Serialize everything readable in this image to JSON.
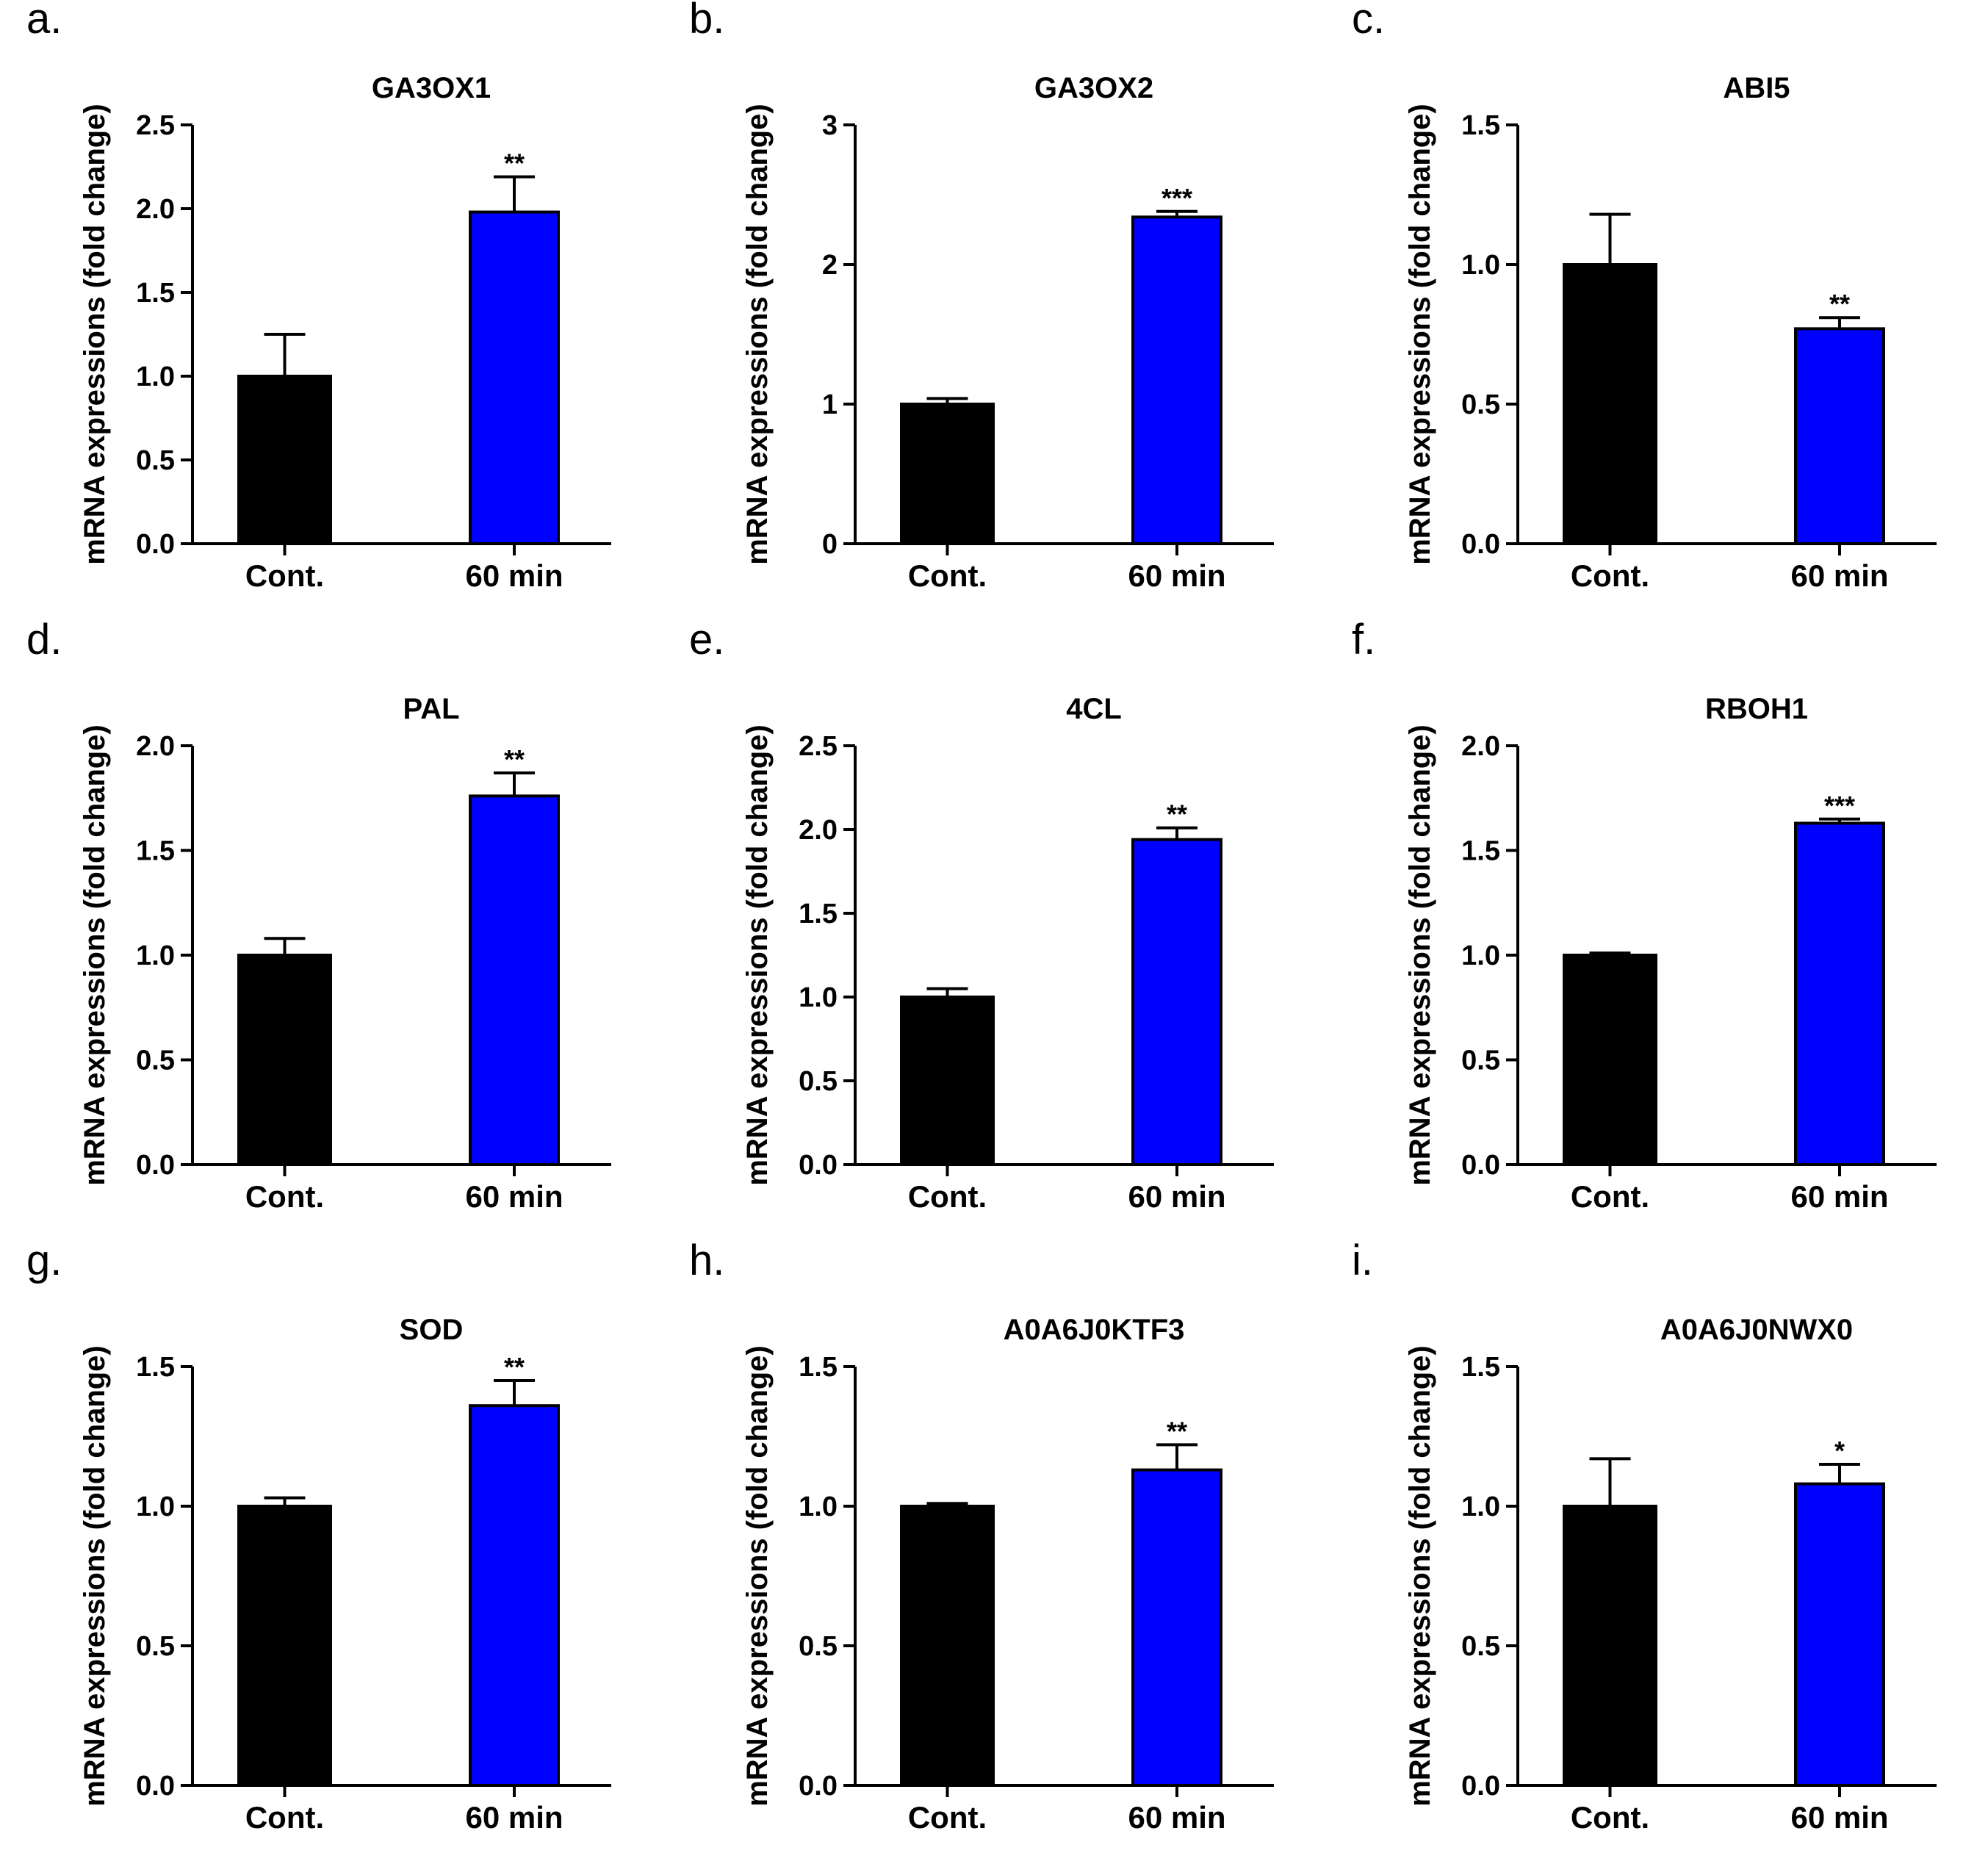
{
  "chart_data": [
    {
      "panel": "a.",
      "type": "bar",
      "title": "GA3OX1",
      "ylabel": "mRNA expressions (fold change)",
      "xlabel": "",
      "categories": [
        "Cont.",
        "60 min"
      ],
      "values": [
        1.0,
        1.98
      ],
      "errors": [
        0.25,
        0.21
      ],
      "significance": [
        "",
        "**"
      ],
      "ylim": [
        0,
        2.5
      ],
      "yticks": [
        "0.0",
        "0.5",
        "1.0",
        "1.5",
        "2.0",
        "2.5"
      ],
      "colors": [
        "#000000",
        "#0000ff"
      ]
    },
    {
      "panel": "b.",
      "type": "bar",
      "title": "GA3OX2",
      "ylabel": "mRNA expressions (fold change)",
      "xlabel": "",
      "categories": [
        "Cont.",
        "60 min"
      ],
      "values": [
        1.0,
        2.34
      ],
      "errors": [
        0.04,
        0.04
      ],
      "significance": [
        "",
        "***"
      ],
      "ylim": [
        0,
        3
      ],
      "yticks": [
        "0",
        "1",
        "2",
        "3"
      ],
      "colors": [
        "#000000",
        "#0000ff"
      ]
    },
    {
      "panel": "c.",
      "type": "bar",
      "title": "ABI5",
      "ylabel": "mRNA expressions (fold change)",
      "xlabel": "",
      "categories": [
        "Cont.",
        "60 min"
      ],
      "values": [
        1.0,
        0.77
      ],
      "errors": [
        0.18,
        0.04
      ],
      "significance": [
        "",
        "**"
      ],
      "ylim": [
        0,
        1.5
      ],
      "yticks": [
        "0.0",
        "0.5",
        "1.0",
        "1.5"
      ],
      "colors": [
        "#000000",
        "#0000ff"
      ]
    },
    {
      "panel": "d.",
      "type": "bar",
      "title": "PAL",
      "ylabel": "mRNA expressions (fold change)",
      "xlabel": "",
      "categories": [
        "Cont.",
        "60 min"
      ],
      "values": [
        1.0,
        1.76
      ],
      "errors": [
        0.08,
        0.11
      ],
      "significance": [
        "",
        "**"
      ],
      "ylim": [
        0,
        2.0
      ],
      "yticks": [
        "0.0",
        "0.5",
        "1.0",
        "1.5",
        "2.0"
      ],
      "colors": [
        "#000000",
        "#0000ff"
      ]
    },
    {
      "panel": "e.",
      "type": "bar",
      "title": "4CL",
      "ylabel": "mRNA expressions (fold change)",
      "xlabel": "",
      "categories": [
        "Cont.",
        "60 min"
      ],
      "values": [
        1.0,
        1.94
      ],
      "errors": [
        0.05,
        0.07
      ],
      "significance": [
        "",
        "**"
      ],
      "ylim": [
        0,
        2.5
      ],
      "yticks": [
        "0.0",
        "0.5",
        "1.0",
        "1.5",
        "2.0",
        "2.5"
      ],
      "colors": [
        "#000000",
        "#0000ff"
      ]
    },
    {
      "panel": "f.",
      "type": "bar",
      "title": "RBOH1",
      "ylabel": "mRNA expressions (fold change)",
      "xlabel": "",
      "categories": [
        "Cont.",
        "60 min"
      ],
      "values": [
        1.0,
        1.63
      ],
      "errors": [
        0.01,
        0.02
      ],
      "significance": [
        "",
        "***"
      ],
      "ylim": [
        0,
        2.0
      ],
      "yticks": [
        "0.0",
        "0.5",
        "1.0",
        "1.5",
        "2.0"
      ],
      "colors": [
        "#000000",
        "#0000ff"
      ]
    },
    {
      "panel": "g.",
      "type": "bar",
      "title": "SOD",
      "ylabel": "mRNA expressions (fold change)",
      "xlabel": "",
      "categories": [
        "Cont.",
        "60 min"
      ],
      "values": [
        1.0,
        1.36
      ],
      "errors": [
        0.03,
        0.09
      ],
      "significance": [
        "",
        "**"
      ],
      "ylim": [
        0,
        1.5
      ],
      "yticks": [
        "0.0",
        "0.5",
        "1.0",
        "1.5"
      ],
      "colors": [
        "#000000",
        "#0000ff"
      ]
    },
    {
      "panel": "h.",
      "type": "bar",
      "title": "A0A6J0KTF3",
      "ylabel": "mRNA expressions (fold change)",
      "xlabel": "",
      "categories": [
        "Cont.",
        "60 min"
      ],
      "values": [
        1.0,
        1.13
      ],
      "errors": [
        0.01,
        0.09
      ],
      "significance": [
        "",
        "**"
      ],
      "ylim": [
        0,
        1.5
      ],
      "yticks": [
        "0.0",
        "0.5",
        "1.0",
        "1.5"
      ],
      "colors": [
        "#000000",
        "#0000ff"
      ]
    },
    {
      "panel": "i.",
      "type": "bar",
      "title": "A0A6J0NWX0",
      "ylabel": "mRNA expressions (fold change)",
      "xlabel": "",
      "categories": [
        "Cont.",
        "60 min"
      ],
      "values": [
        1.0,
        1.08
      ],
      "errors": [
        0.17,
        0.07
      ],
      "significance": [
        "",
        "*"
      ],
      "ylim": [
        0,
        1.5
      ],
      "yticks": [
        "0.0",
        "0.5",
        "1.0",
        "1.5"
      ],
      "colors": [
        "#000000",
        "#0000ff"
      ]
    }
  ]
}
